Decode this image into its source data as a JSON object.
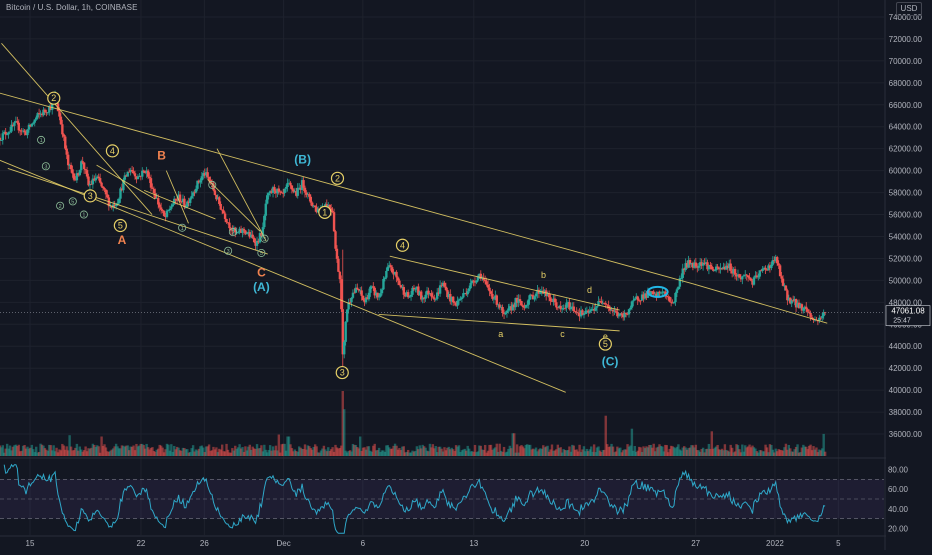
{
  "chart_data": {
    "type": "candlestick",
    "title": "Bitcoin / U.S. Dollar, 1h, COINBASE",
    "currency": "USD",
    "price_axis": {
      "min": 34000,
      "max": 75000,
      "ticks": [
        "74000.00",
        "72000.00",
        "70000.00",
        "68000.00",
        "66000.00",
        "64000.00",
        "62000.00",
        "60000.00",
        "58000.00",
        "56000.00",
        "54000.00",
        "52000.00",
        "50000.00",
        "48000.00",
        "46000.00",
        "44000.00",
        "42000.00",
        "40000.00",
        "38000.00",
        "36000.00"
      ]
    },
    "current_price": {
      "label": "47061.08",
      "countdown": "25:47",
      "value": 47061.08
    },
    "x_axis": {
      "labels": [
        {
          "t": 0,
          "text": "15"
        },
        {
          "t": 7,
          "text": "22"
        },
        {
          "t": 11,
          "text": "26"
        },
        {
          "t": 16,
          "text": "Dec"
        },
        {
          "t": 21,
          "text": "6"
        },
        {
          "t": 28,
          "text": "13"
        },
        {
          "t": 35,
          "text": "20"
        },
        {
          "t": 42,
          "text": "27"
        },
        {
          "t": 47,
          "text": "2022"
        },
        {
          "t": 51,
          "text": "5"
        }
      ]
    },
    "price_path": [
      [
        -1.9,
        63000
      ],
      [
        -0.9,
        64200
      ],
      [
        -0.3,
        63400
      ],
      [
        0.5,
        65000
      ],
      [
        1.3,
        65800
      ],
      [
        1.6,
        66700
      ],
      [
        2.0,
        64000
      ],
      [
        2.4,
        60500
      ],
      [
        2.9,
        59200
      ],
      [
        3.3,
        61000
      ],
      [
        3.7,
        58600
      ],
      [
        4.2,
        59400
      ],
      [
        4.7,
        58000
      ],
      [
        5.1,
        56700
      ],
      [
        5.5,
        57200
      ],
      [
        5.9,
        59000
      ],
      [
        6.3,
        60200
      ],
      [
        6.8,
        59400
      ],
      [
        7.3,
        60100
      ],
      [
        7.7,
        58500
      ],
      [
        8.1,
        57000
      ],
      [
        8.5,
        55600
      ],
      [
        8.9,
        56800
      ],
      [
        9.4,
        57600
      ],
      [
        9.8,
        56800
      ],
      [
        10.4,
        58400
      ],
      [
        11.0,
        59800
      ],
      [
        11.4,
        58900
      ],
      [
        11.8,
        57400
      ],
      [
        12.2,
        56200
      ],
      [
        12.6,
        55000
      ],
      [
        13.0,
        54200
      ],
      [
        13.5,
        54600
      ],
      [
        13.9,
        54000
      ],
      [
        14.3,
        53400
      ],
      [
        14.7,
        54600
      ],
      [
        14.9,
        57300
      ],
      [
        15.4,
        58400
      ],
      [
        15.9,
        57600
      ],
      [
        16.3,
        58700
      ],
      [
        16.8,
        57900
      ],
      [
        17.2,
        58900
      ],
      [
        17.6,
        57400
      ],
      [
        18.1,
        56400
      ],
      [
        18.7,
        57000
      ],
      [
        19.1,
        56400
      ],
      [
        19.3,
        52400
      ],
      [
        19.6,
        49800
      ],
      [
        19.75,
        42300
      ],
      [
        19.95,
        47200
      ],
      [
        20.3,
        48800
      ],
      [
        20.7,
        49200
      ],
      [
        21.1,
        48000
      ],
      [
        21.5,
        49300
      ],
      [
        22.0,
        48400
      ],
      [
        22.3,
        49800
      ],
      [
        22.6,
        51200
      ],
      [
        23.0,
        50600
      ],
      [
        23.4,
        49400
      ],
      [
        23.9,
        48400
      ],
      [
        24.3,
        49400
      ],
      [
        24.7,
        48400
      ],
      [
        25.2,
        49000
      ],
      [
        25.6,
        48400
      ],
      [
        26.0,
        49800
      ],
      [
        26.4,
        48600
      ],
      [
        26.8,
        47800
      ],
      [
        27.2,
        48400
      ],
      [
        27.6,
        49200
      ],
      [
        28.0,
        50000
      ],
      [
        28.4,
        50600
      ],
      [
        28.8,
        49400
      ],
      [
        29.2,
        48600
      ],
      [
        29.6,
        47800
      ],
      [
        29.9,
        46600
      ],
      [
        30.3,
        47400
      ],
      [
        30.7,
        48200
      ],
      [
        31.1,
        47600
      ],
      [
        31.5,
        48300
      ],
      [
        31.9,
        48800
      ],
      [
        32.3,
        49200
      ],
      [
        32.7,
        48400
      ],
      [
        33.1,
        48000
      ],
      [
        33.5,
        47200
      ],
      [
        33.9,
        47800
      ],
      [
        34.3,
        47400
      ],
      [
        34.7,
        47000
      ],
      [
        35.0,
        46900
      ],
      [
        35.4,
        47200
      ],
      [
        35.8,
        47800
      ],
      [
        36.2,
        48300
      ],
      [
        36.6,
        47400
      ],
      [
        37.0,
        47000
      ],
      [
        37.4,
        46600
      ],
      [
        37.8,
        47400
      ],
      [
        38.3,
        48400
      ],
      [
        38.7,
        48600
      ],
      [
        39.1,
        48800
      ],
      [
        39.5,
        48500
      ],
      [
        39.9,
        49100
      ],
      [
        40.2,
        48300
      ],
      [
        40.6,
        48000
      ],
      [
        40.8,
        49100
      ],
      [
        41.0,
        50000
      ],
      [
        41.2,
        51100
      ],
      [
        41.6,
        51600
      ],
      [
        42.0,
        51400
      ],
      [
        42.4,
        51700
      ],
      [
        42.8,
        51300
      ],
      [
        43.2,
        50900
      ],
      [
        43.6,
        51000
      ],
      [
        44.0,
        51400
      ],
      [
        44.4,
        50800
      ],
      [
        44.8,
        50200
      ],
      [
        45.2,
        50500
      ],
      [
        45.6,
        49800
      ],
      [
        46.0,
        50600
      ],
      [
        46.4,
        51100
      ],
      [
        46.8,
        51500
      ],
      [
        47.1,
        52000
      ],
      [
        47.3,
        50600
      ],
      [
        47.5,
        49600
      ],
      [
        47.8,
        48400
      ],
      [
        48.2,
        48000
      ],
      [
        48.6,
        47600
      ],
      [
        49.0,
        47400
      ],
      [
        49.3,
        46600
      ],
      [
        49.6,
        46300
      ],
      [
        49.9,
        46700
      ],
      [
        50.2,
        47060
      ]
    ],
    "volume_spikes": [
      {
        "t": 19.7,
        "v": 1.0
      },
      {
        "t": 19.85,
        "v": 0.72
      },
      {
        "t": 36.3,
        "v": 0.62
      },
      {
        "t": 38.0,
        "v": 0.42
      },
      {
        "t": 43.0,
        "v": 0.38
      },
      {
        "t": 50.1,
        "v": 0.34
      },
      {
        "t": 30.5,
        "v": 0.35
      },
      {
        "t": 15.7,
        "v": 0.33
      },
      {
        "t": 16.3,
        "v": 0.3
      },
      {
        "t": 20.8,
        "v": 0.3
      },
      {
        "t": 4.5,
        "v": 0.3
      },
      {
        "t": 2.5,
        "v": 0.32
      }
    ],
    "rsi": {
      "ticks": [
        "80.00",
        "60.00",
        "40.00",
        "20.00"
      ],
      "upper_band": 70,
      "lower_band": 30,
      "mid": 50
    },
    "trendlines": [
      {
        "color": "#e6d067",
        "pts": [
          [
            -2,
            67100
          ],
          [
            41.8,
            49700
          ]
        ]
      },
      {
        "color": "#e6d067",
        "pts": [
          [
            41.8,
            49700
          ],
          [
            50.3,
            46100
          ]
        ]
      },
      {
        "color": "#e6d067",
        "pts": [
          [
            -2,
            61000
          ],
          [
            33.8,
            39800
          ]
        ]
      },
      {
        "color": "#e6d067",
        "pts": [
          [
            22.7,
            52200
          ],
          [
            37.2,
            47300
          ]
        ]
      },
      {
        "color": "#e6d067",
        "pts": [
          [
            22.0,
            46900
          ],
          [
            37.2,
            45400
          ]
        ]
      },
      {
        "color": "#e6d067",
        "pts": [
          [
            -1.8,
            71600
          ],
          [
            7.7,
            56000
          ]
        ]
      },
      {
        "color": "#e6d067",
        "pts": [
          [
            -1.4,
            60200
          ],
          [
            15.0,
            52400
          ]
        ]
      },
      {
        "color": "#e6d067",
        "pts": [
          [
            4.2,
            60500
          ],
          [
            7.9,
            57400
          ]
        ]
      },
      {
        "color": "#e6d067",
        "pts": [
          [
            7.2,
            58200
          ],
          [
            11.7,
            55600
          ]
        ]
      },
      {
        "color": "#e6d067",
        "pts": [
          [
            8.6,
            60000
          ],
          [
            10.0,
            55200
          ]
        ]
      },
      {
        "color": "#e6d067",
        "pts": [
          [
            11.8,
            62000
          ],
          [
            14.9,
            53600
          ]
        ]
      },
      {
        "color": "#e6d067",
        "pts": [
          [
            11.2,
            59200
          ],
          [
            14.5,
            54500
          ]
        ]
      }
    ],
    "wave_labels": [
      {
        "text": "2",
        "t": 1.5,
        "p": 66600,
        "color": "#e6d067",
        "circle": true
      },
      {
        "text": "4",
        "t": 5.2,
        "p": 61800,
        "color": "#e6d067",
        "circle": true
      },
      {
        "text": "3",
        "t": 3.8,
        "p": 57700,
        "color": "#e6d067",
        "circle": true
      },
      {
        "text": "5",
        "t": 5.7,
        "p": 55000,
        "color": "#e6d067",
        "circle": true
      },
      {
        "text": "A",
        "t": 5.8,
        "p": 53700,
        "color": "#f0824f",
        "circle": false
      },
      {
        "text": "B",
        "t": 8.3,
        "p": 61400,
        "color": "#f0824f",
        "circle": false
      },
      {
        "text": "C",
        "t": 14.6,
        "p": 50700,
        "color": "#f0824f",
        "circle": false
      },
      {
        "text": "(B)",
        "t": 17.2,
        "p": 61000,
        "color": "#3fb8d6",
        "circle": false
      },
      {
        "text": "(A)",
        "t": 14.6,
        "p": 49400,
        "color": "#3fb8d6",
        "circle": false
      },
      {
        "text": "2",
        "t": 19.4,
        "p": 59300,
        "color": "#e6d067",
        "circle": true
      },
      {
        "text": "1",
        "t": 18.6,
        "p": 56200,
        "color": "#e6d067",
        "circle": true
      },
      {
        "text": "3",
        "t": 19.7,
        "p": 41600,
        "color": "#e6d067",
        "circle": true
      },
      {
        "text": "4",
        "t": 23.5,
        "p": 53200,
        "color": "#e6d067",
        "circle": true
      },
      {
        "text": "a",
        "t": 29.7,
        "p": 45200,
        "color": "#e6d067",
        "circle": false
      },
      {
        "text": "b",
        "t": 32.4,
        "p": 50600,
        "color": "#e6d067",
        "circle": false
      },
      {
        "text": "c",
        "t": 33.6,
        "p": 45200,
        "color": "#e6d067",
        "circle": false
      },
      {
        "text": "d",
        "t": 35.3,
        "p": 49200,
        "color": "#e6d067",
        "circle": false
      },
      {
        "text": "e",
        "t": 36.3,
        "p": 45000,
        "color": "#e6d067",
        "circle": false
      },
      {
        "text": "5",
        "t": 36.3,
        "p": 44200,
        "color": "#e6d067",
        "circle": true
      },
      {
        "text": "(C)",
        "t": 36.6,
        "p": 42600,
        "color": "#3fb8d6",
        "circle": false
      }
    ],
    "minor_labels": [
      {
        "text": "1",
        "t": 0.7,
        "p": 62800
      },
      {
        "text": "3",
        "t": 1.0,
        "p": 60400
      },
      {
        "text": "5",
        "t": 2.7,
        "p": 57200
      },
      {
        "text": "2",
        "t": 1.9,
        "p": 56800
      },
      {
        "text": "1",
        "t": 3.4,
        "p": 56000
      },
      {
        "text": "1",
        "t": 9.6,
        "p": 54800
      },
      {
        "text": "3",
        "t": 11.5,
        "p": 58700
      },
      {
        "text": "2",
        "t": 12.8,
        "p": 54400
      },
      {
        "text": "3",
        "t": 12.5,
        "p": 52700
      },
      {
        "text": "5",
        "t": 14.6,
        "p": 52500
      },
      {
        "text": "3",
        "t": 14.8,
        "p": 53800
      }
    ],
    "highlight": {
      "t": 39.6,
      "p": 48950,
      "color": "#22b6e5"
    }
  }
}
